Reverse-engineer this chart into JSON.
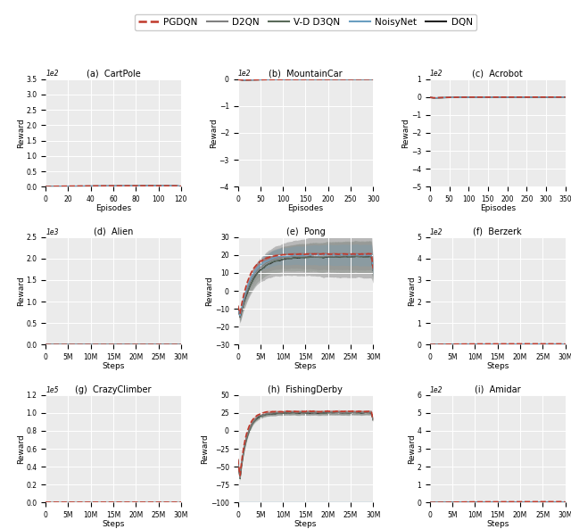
{
  "legend_labels": [
    "PGDQN",
    "D2QN",
    "V-D D3QN",
    "NoisyNet",
    "DQN"
  ],
  "legend_colors": [
    "#c0392b",
    "#7f8c8d",
    "#5d6d5e",
    "#7fa8c9",
    "#2c2c2c"
  ],
  "subplots": [
    {
      "title": "(a)  CartPole",
      "xlabel": "Episodes",
      "ylabel": "Reward",
      "xmax": 120,
      "xticks": [
        0,
        20,
        40,
        60,
        80,
        100,
        120
      ],
      "ymin": 0.0,
      "ymax": 3.5,
      "yticks": [
        0.0,
        0.5,
        1.0,
        1.5,
        2.0,
        2.5,
        3.0,
        3.5
      ],
      "multiplier_label": "1e2",
      "use_steps": false
    },
    {
      "title": "(b)  MountainCar",
      "xlabel": "Episodes",
      "ylabel": "Reward",
      "xmax": 300,
      "xticks": [
        0,
        50,
        100,
        150,
        200,
        250,
        300
      ],
      "ymin": -4,
      "ymax": 0,
      "yticks": [
        -4,
        -3,
        -2,
        -1,
        0
      ],
      "multiplier_label": "1e2",
      "use_steps": false
    },
    {
      "title": "(c)  Acrobot",
      "xlabel": "Episodes",
      "ylabel": "Reward",
      "xmax": 350,
      "xticks": [
        0,
        50,
        100,
        150,
        200,
        250,
        300,
        350
      ],
      "ymin": -5,
      "ymax": 1,
      "yticks": [
        -5,
        -4,
        -3,
        -2,
        -1,
        0,
        1
      ],
      "multiplier_label": "1e2",
      "use_steps": false
    },
    {
      "title": "(d)  Alien",
      "xlabel": "Steps",
      "ylabel": "Reward",
      "xmax": 30000000,
      "xticks": [
        0,
        5000000,
        10000000,
        15000000,
        20000000,
        25000000,
        30000000
      ],
      "xticklabels": [
        "0",
        "5M",
        "10M",
        "15M",
        "20M",
        "25M",
        "30M"
      ],
      "ymin": 0,
      "ymax": 2.5,
      "yticks": [
        0,
        0.5,
        1.0,
        1.5,
        2.0,
        2.5
      ],
      "multiplier_label": "1e3",
      "use_steps": true
    },
    {
      "title": "(e)  Pong",
      "xlabel": "Steps",
      "ylabel": "Reward",
      "xmax": 30000000,
      "xticks": [
        0,
        5000000,
        10000000,
        15000000,
        20000000,
        25000000,
        30000000
      ],
      "xticklabels": [
        "0",
        "5M",
        "10M",
        "15M",
        "20M",
        "25M",
        "30M"
      ],
      "ymin": -30,
      "ymax": 30,
      "yticks": [
        -30,
        -20,
        -10,
        0,
        10,
        20,
        30
      ],
      "multiplier_label": "",
      "use_steps": true
    },
    {
      "title": "(f)  Berzerk",
      "xlabel": "Steps",
      "ylabel": "Reward",
      "xmax": 30000000,
      "xticks": [
        0,
        5000000,
        10000000,
        15000000,
        20000000,
        25000000,
        30000000
      ],
      "xticklabels": [
        "0",
        "5M",
        "10M",
        "15M",
        "20M",
        "25M",
        "30M"
      ],
      "ymin": 0,
      "ymax": 5,
      "yticks": [
        0,
        1,
        2,
        3,
        4,
        5
      ],
      "multiplier_label": "1e2",
      "use_steps": true
    },
    {
      "title": "(g)  CrazyClimber",
      "xlabel": "Steps",
      "ylabel": "Reward",
      "xmax": 30000000,
      "xticks": [
        0,
        5000000,
        10000000,
        15000000,
        20000000,
        25000000,
        30000000
      ],
      "xticklabels": [
        "0",
        "5M",
        "10M",
        "15M",
        "20M",
        "25M",
        "30M"
      ],
      "ymin": 0,
      "ymax": 1.2,
      "yticks": [
        0,
        0.2,
        0.4,
        0.6,
        0.8,
        1.0,
        1.2
      ],
      "multiplier_label": "1e5",
      "use_steps": true
    },
    {
      "title": "(h)  FishingDerby",
      "xlabel": "Steps",
      "ylabel": "Reward",
      "xmax": 30000000,
      "xticks": [
        0,
        5000000,
        10000000,
        15000000,
        20000000,
        25000000,
        30000000
      ],
      "xticklabels": [
        "0",
        "5M",
        "10M",
        "15M",
        "20M",
        "25M",
        "30M"
      ],
      "ymin": -100,
      "ymax": 50,
      "yticks": [
        -100,
        -75,
        -50,
        -25,
        0,
        25,
        50
      ],
      "multiplier_label": "",
      "use_steps": true
    },
    {
      "title": "(i)  Amidar",
      "xlabel": "Steps",
      "ylabel": "Reward",
      "xmax": 30000000,
      "xticks": [
        0,
        5000000,
        10000000,
        15000000,
        20000000,
        25000000,
        30000000
      ],
      "xticklabels": [
        "0",
        "5M",
        "10M",
        "15M",
        "20M",
        "25M",
        "30M"
      ],
      "ymin": 0,
      "ymax": 6,
      "yticks": [
        0,
        1,
        2,
        3,
        4,
        5,
        6
      ],
      "multiplier_label": "1e2",
      "use_steps": true
    }
  ]
}
